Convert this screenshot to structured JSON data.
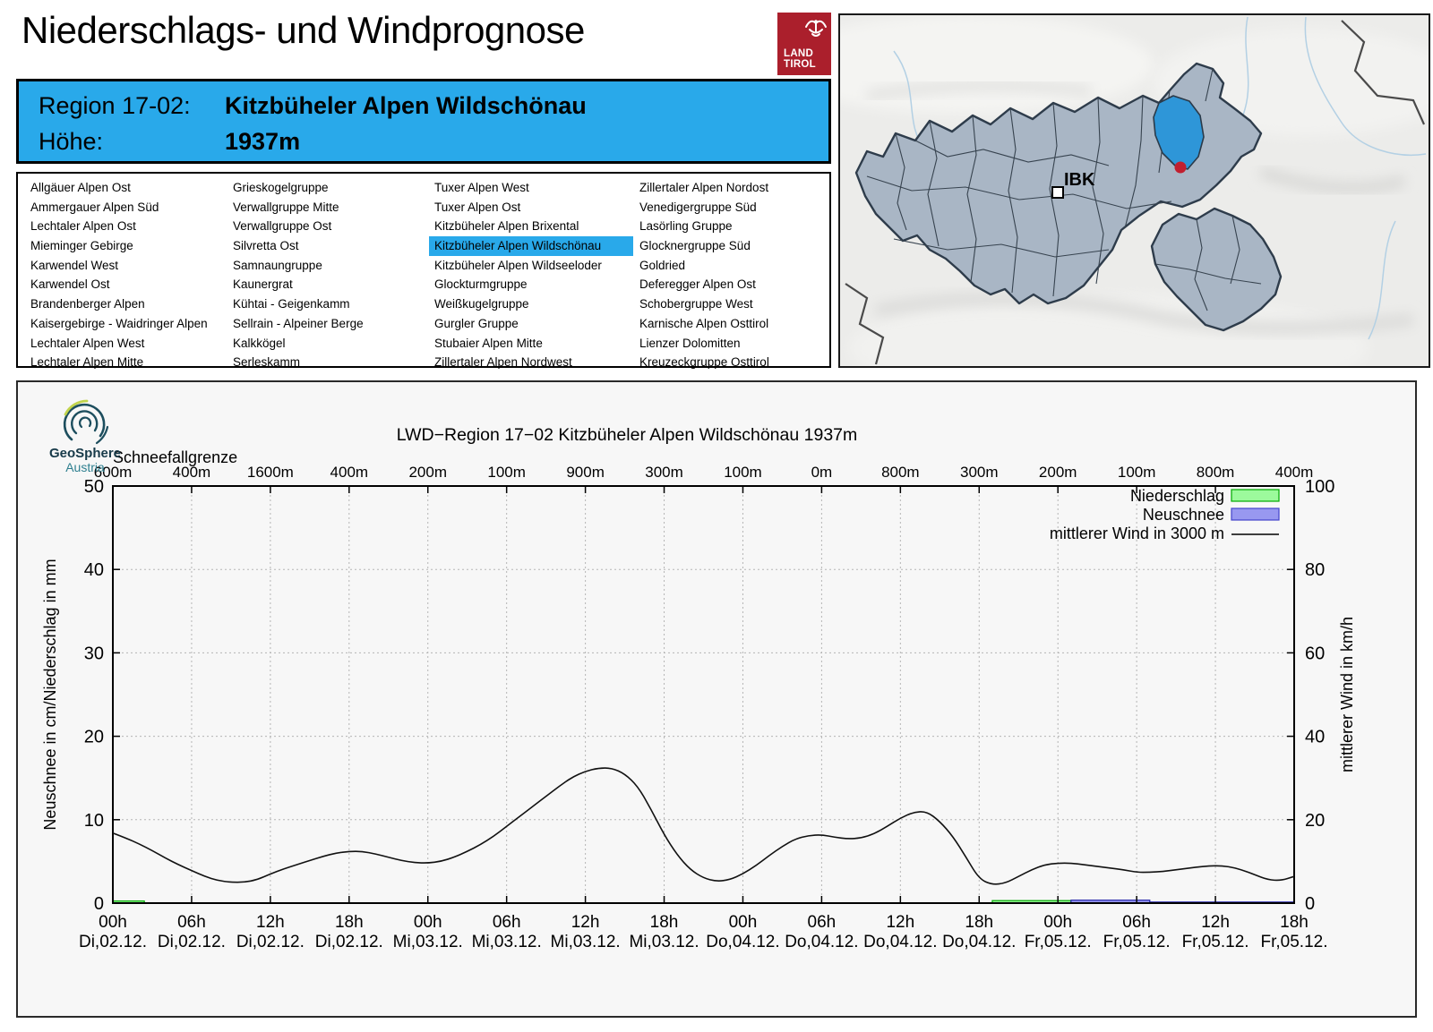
{
  "header": {
    "title": "Niederschlags- und Windprognose",
    "logo": {
      "line1": "LAND",
      "line2": "TIROL"
    }
  },
  "region_box": {
    "label1": "Region 17-02:",
    "value1": "Kitzbüheler Alpen Wildschönau",
    "label2": "Höhe:",
    "value2": "1937m",
    "accent_color": "#29a9ea"
  },
  "region_list": {
    "selected": "Kitzbüheler Alpen Wildschönau",
    "columns": [
      [
        "Allgäuer Alpen Ost",
        "Ammergauer Alpen Süd",
        "Lechtaler Alpen Ost",
        "Mieminger Gebirge",
        "Karwendel West",
        "Karwendel Ost",
        "Brandenberger Alpen",
        "Kaisergebirge - Waidringer Alpen",
        "Lechtaler Alpen West",
        "Lechtaler Alpen Mitte"
      ],
      [
        "Grieskogelgruppe",
        "Verwallgruppe Mitte",
        "Verwallgruppe Ost",
        "Silvretta Ost",
        "Samnaungruppe",
        "Kaunergrat",
        "Kühtai - Geigenkamm",
        "Sellrain - Alpeiner Berge",
        "Kalkkögel",
        "Serleskamm"
      ],
      [
        "Tuxer Alpen West",
        "Tuxer Alpen Ost",
        "Kitzbüheler Alpen Brixental",
        "Kitzbüheler Alpen Wildschönau",
        "Kitzbüheler Alpen Wildseeloder",
        "Glockturmgruppe",
        "Weißkugelgruppe",
        "Gurgler Gruppe",
        "Stubaier Alpen Mitte",
        "Zillertaler Alpen Nordwest"
      ],
      [
        "Zillertaler Alpen Nordost",
        "Venedigergruppe Süd",
        "Lasörling Gruppe",
        "Glocknergruppe Süd",
        "Goldried",
        "Deferegger Alpen Ost",
        "Schobergruppe West",
        "Karnische Alpen Osttirol",
        "Lienzer Dolomitten",
        "Kreuzeckgruppe Osttirol"
      ]
    ]
  },
  "map": {
    "city_label": "IBK",
    "highlight_color": "#2e96d8",
    "region_fill": "#a9b6c5",
    "marker_color": "#c11f2f"
  },
  "chart_logo": {
    "line1": "GeoSphere",
    "line2": "Austria"
  },
  "chart_data": {
    "type": "line",
    "title": "LWD−Region 17−02 Kitzbüheler Alpen Wildschönau 1937m",
    "top_axis": {
      "label": "Schneefallgrenze",
      "tick_labels": [
        "600m",
        "400m",
        "1600m",
        "400m",
        "200m",
        "100m",
        "900m",
        "300m",
        "100m",
        "0m",
        "800m",
        "300m",
        "200m",
        "100m",
        "800m",
        "400m"
      ]
    },
    "x_axis": {
      "hour_labels": [
        "00h",
        "06h",
        "12h",
        "18h",
        "00h",
        "06h",
        "12h",
        "18h",
        "00h",
        "06h",
        "12h",
        "18h",
        "00h",
        "06h",
        "12h",
        "18h"
      ],
      "date_labels": [
        "Di,02.12.",
        "Di,02.12.",
        "Di,02.12.",
        "Di,02.12.",
        "Mi,03.12.",
        "Mi,03.12.",
        "Mi,03.12.",
        "Mi,03.12.",
        "Do,04.12.",
        "Do,04.12.",
        "Do,04.12.",
        "Do,04.12.",
        "Fr,05.12.",
        "Fr,05.12.",
        "Fr,05.12.",
        "Fr,05.12."
      ]
    },
    "y_left": {
      "label": "Neuschnee in cm/Niederschlag in mm",
      "min": 0,
      "max": 50,
      "ticks": [
        0,
        10,
        20,
        30,
        40,
        50
      ]
    },
    "y_right": {
      "label": "mittlerer Wind in km/h",
      "min": 0,
      "max": 100,
      "ticks": [
        0,
        20,
        40,
        60,
        80,
        100
      ]
    },
    "grid": true,
    "hours_total": 90,
    "legend": [
      {
        "label": "Niederschlag",
        "swatch": "box",
        "fill": "#9cfa9c",
        "stroke": "#00a800"
      },
      {
        "label": "Neuschnee",
        "swatch": "box",
        "fill": "#9898f0",
        "stroke": "#4444cc"
      },
      {
        "label": "mittlerer Wind in 3000 m",
        "swatch": "line",
        "stroke": "#000000"
      }
    ],
    "wind_kmh": [
      16.8,
      15.6,
      14.2,
      12.6,
      10.8,
      9.2,
      7.8,
      6.4,
      5.4,
      5.0,
      5.0,
      5.6,
      7.0,
      8.2,
      9.2,
      10.2,
      11.2,
      12.0,
      12.4,
      12.4,
      11.8,
      11.0,
      10.2,
      9.7,
      9.6,
      10.0,
      11.0,
      12.4,
      14.0,
      16.0,
      18.4,
      20.8,
      23.2,
      25.6,
      28.0,
      30.2,
      31.6,
      32.4,
      32.4,
      31.0,
      28.0,
      22.5,
      16.4,
      11.5,
      8.0,
      6.0,
      5.2,
      5.6,
      7.0,
      9.0,
      11.4,
      13.6,
      15.4,
      16.2,
      16.4,
      15.8,
      15.4,
      15.6,
      16.6,
      18.4,
      20.4,
      21.8,
      22.0,
      19.6,
      16.0,
      11.0,
      5.8,
      4.4,
      4.8,
      6.4,
      8.0,
      9.2,
      9.6,
      9.6,
      9.2,
      8.8,
      8.4,
      8.0,
      7.4,
      7.4,
      7.6,
      8.0,
      8.4,
      8.8,
      9.0,
      8.8,
      8.0,
      6.8,
      5.6,
      5.4,
      6.4
    ],
    "precip_bars_mm": [
      {
        "t0": 0,
        "t1": 2.4,
        "v": 0.25
      },
      {
        "t0": 67,
        "t1": 73,
        "v": 0.3
      }
    ],
    "snow_bars_cm": [
      {
        "t0": 73,
        "t1": 79,
        "v": 0.35
      },
      {
        "t0": 79,
        "t1": 90,
        "v": 0.08
      }
    ]
  }
}
